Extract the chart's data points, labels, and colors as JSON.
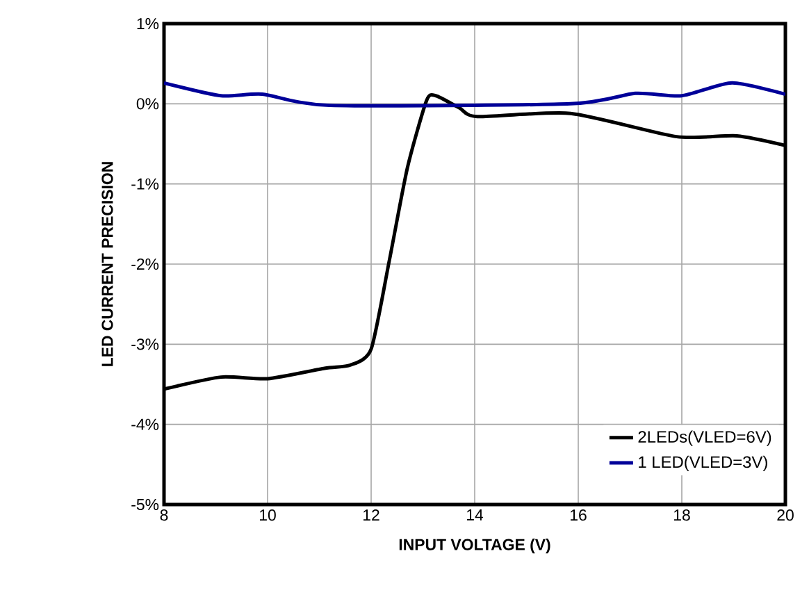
{
  "chart_data": {
    "type": "line",
    "xlabel": "INPUT VOLTAGE  (V)",
    "ylabel": "LED CURRENT  PRECISION",
    "xlim": [
      8,
      20
    ],
    "xticks": [
      8,
      10,
      12,
      14,
      16,
      18,
      20
    ],
    "ylim": [
      -5,
      1
    ],
    "yticks": [
      {
        "value": -5,
        "label": "-5%"
      },
      {
        "value": -4,
        "label": "-4%"
      },
      {
        "value": -3,
        "label": "-3%"
      },
      {
        "value": -2,
        "label": "-2%"
      },
      {
        "value": -1,
        "label": "-1%"
      },
      {
        "value": 0,
        "label": "0%"
      },
      {
        "value": 1,
        "label": "1%"
      }
    ],
    "grid": true,
    "legend": "bottom right",
    "marker": "none",
    "line_style": "solid",
    "series": [
      {
        "name": "2LEDs(VLED=6V)",
        "color": "#000000",
        "x": [
          8.0,
          9.1,
          10.0,
          11.1,
          11.6,
          12.0,
          12.35,
          12.7,
          13.07,
          13.25,
          13.7,
          14.05,
          15.85,
          17.9,
          19.06,
          20.0
        ],
        "values": [
          -3.56,
          -3.41,
          -3.43,
          -3.3,
          -3.26,
          -3.06,
          -1.96,
          -0.8,
          0.04,
          0.1,
          -0.05,
          -0.16,
          -0.12,
          -0.41,
          -0.4,
          -0.52
        ]
      },
      {
        "name": "1 LED(VLED=3V)",
        "color": "#000099",
        "x": [
          8.0,
          9.1,
          9.9,
          11.2,
          15.85,
          17.1,
          18.0,
          18.97,
          20.0
        ],
        "values": [
          0.26,
          0.1,
          0.12,
          -0.02,
          0.0,
          0.13,
          0.1,
          0.26,
          0.12
        ]
      }
    ]
  }
}
